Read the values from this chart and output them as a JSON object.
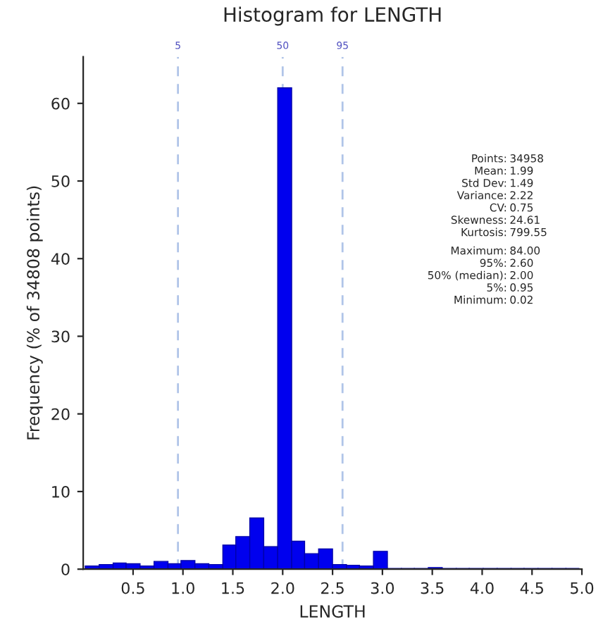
{
  "chart_data": {
    "type": "histogram",
    "title": "Histogram for LENGTH",
    "xlabel": "LENGTH",
    "ylabel": "Frequency (% of 34808 points)",
    "bins": [
      0.02,
      0.16,
      0.3,
      0.43,
      0.57,
      0.71,
      0.85,
      0.98,
      1.12,
      1.26,
      1.4,
      1.53,
      1.67,
      1.81,
      1.95,
      2.09,
      2.22,
      2.36,
      2.5,
      2.64,
      2.77,
      2.91,
      3.05,
      3.19,
      3.32,
      3.46,
      3.6,
      3.74,
      3.87,
      4.01,
      4.15,
      4.29,
      4.42,
      4.56,
      4.7,
      4.84,
      4.97
    ],
    "values": [
      0.4,
      0.6,
      0.8,
      0.7,
      0.4,
      1.0,
      0.7,
      1.1,
      0.7,
      0.6,
      3.1,
      4.2,
      6.6,
      2.9,
      62,
      3.6,
      2.0,
      2.6,
      0.6,
      0.5,
      0.4,
      2.3,
      0.1,
      0.1,
      0.1,
      0.2,
      0.1,
      0.1,
      0.1,
      0.1,
      0.1,
      0.1,
      0.1,
      0.1,
      0.1,
      0.1
    ],
    "color": "#0000ee",
    "xlim": [
      0,
      5.0
    ],
    "xticks": [
      {
        "value": 0.5,
        "label": "0.5"
      },
      {
        "value": 1.0,
        "label": "1.0"
      },
      {
        "value": 1.5,
        "label": "1.5"
      },
      {
        "value": 2.0,
        "label": "2.0"
      },
      {
        "value": 2.5,
        "label": "2.5"
      },
      {
        "value": 3.0,
        "label": "3.0"
      },
      {
        "value": 3.5,
        "label": "3.5"
      },
      {
        "value": 4.0,
        "label": "4.0"
      },
      {
        "value": 4.5,
        "label": "4.5"
      },
      {
        "value": 5.0,
        "label": "5.0"
      }
    ],
    "ylim": [
      0,
      66
    ],
    "yticks": [
      0,
      10,
      20,
      30,
      40,
      50,
      60
    ],
    "ref_lines": [
      {
        "axis": "x",
        "value": 0.95,
        "color": "#b0c4e8",
        "line_style": "dashed"
      },
      {
        "axis": "x",
        "value": 2.0,
        "color": "#b0c4e8",
        "line_style": "dashed"
      },
      {
        "axis": "x",
        "value": 2.6,
        "color": "#b0c4e8",
        "line_style": "dashed"
      }
    ],
    "annotations": [
      "Points: 34958",
      "Mean: 1.99",
      "Std Dev: 1.49",
      "Variance: 2.22",
      "CV: 0.75",
      "Skewness: 24.61",
      "Kurtosis: 799.55",
      "Maximum: 84.00",
      "95%: 2.60",
      "50% (median): 2.00",
      "5%: 0.95",
      "Minimum: 0.02",
      {
        "text": "5",
        "x": 0.95,
        "y": 66
      },
      {
        "text": "50",
        "x": 2.0,
        "y": 66
      },
      {
        "text": "95",
        "x": 2.6,
        "y": 66
      }
    ],
    "grid": false
  }
}
